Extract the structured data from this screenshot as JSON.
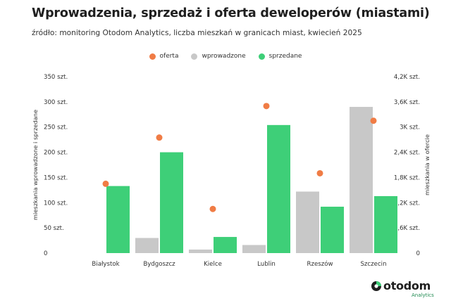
{
  "title": "Wprowadzenia, sprzedaż i oferta deweloperów (miastami)",
  "subtitle": "źródło: monitoring Otodom Analytics, liczba mieszkań w granicach miast, kwiecień 2025",
  "logo": {
    "name": "otodom",
    "sub": "Analytics"
  },
  "colors": {
    "oferta": "#f07c45",
    "wprowadzone": "#c8c8c8",
    "sprzedane": "#3ecf78"
  },
  "chart_data": {
    "type": "bar",
    "categories": [
      "Białystok",
      "Bydgoszcz",
      "Kielce",
      "Lublin",
      "Rzeszów",
      "Szczecin"
    ],
    "series": [
      {
        "name": "wprowadzone",
        "type": "bar",
        "axis": "left",
        "values": [
          0,
          30,
          7,
          16,
          122,
          290
        ]
      },
      {
        "name": "sprzedane",
        "type": "bar",
        "axis": "left",
        "values": [
          133,
          200,
          32,
          254,
          92,
          113
        ]
      },
      {
        "name": "oferta",
        "type": "scatter",
        "axis": "right",
        "values": [
          1650,
          2750,
          1050,
          3500,
          1900,
          3150
        ]
      }
    ],
    "legend": [
      "oferta",
      "wprowadzone",
      "sprzedane"
    ],
    "legend_position": "top-center",
    "ylabel": "mieszkania wprowadzone i sprzedane",
    "y2label": "mieszkania w ofercie",
    "ylim": [
      0,
      350
    ],
    "y2lim": [
      0,
      4200
    ],
    "yticks": [
      "0",
      "50 szt.",
      "100 szt.",
      "150 szt.",
      "200 szt.",
      "250 szt.",
      "300 szt.",
      "350 szt."
    ],
    "y2ticks": [
      "0",
      "0,6K szt.",
      "1,2K szt.",
      "1,8K szt.",
      "2,4K szt.",
      "3K szt.",
      "3,6K szt.",
      "4,2K szt."
    ],
    "grid": false
  }
}
